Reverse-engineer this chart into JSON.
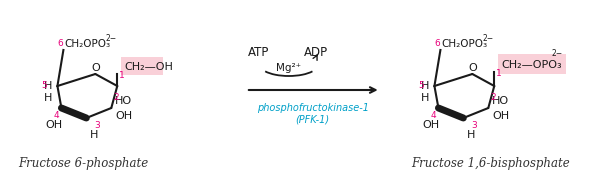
{
  "bg_color": "#ffffff",
  "highlight_color": "#f9d0d8",
  "pink_color": "#e8007a",
  "cyan_color": "#00a0c8",
  "black_color": "#1a1a1a",
  "title_left": "Fructose 6-phosphate",
  "title_right": "Fructose 1,6-bisphosphate",
  "arrow_label_bot1": "phosphofructokinase-1",
  "arrow_label_bot2": "(PFK-1)"
}
